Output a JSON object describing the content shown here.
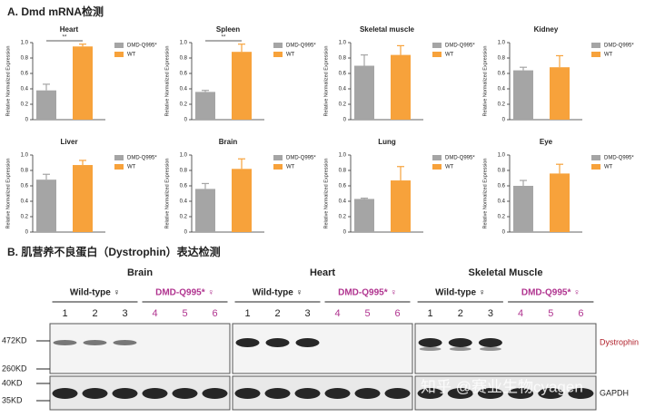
{
  "panel_a_title": "A. Dmd mRNA检测",
  "chart_data": [
    {
      "type": "bar",
      "title": "Heart",
      "y_label": "Relative Normalized Expression",
      "categories": [
        null
      ],
      "series": [
        {
          "name": "DMD-Q995*",
          "color": "#a5a5a5",
          "values": [
            0.38
          ],
          "errors": [
            0.08
          ]
        },
        {
          "name": "WT",
          "color": "#f7a23b",
          "values": [
            0.95
          ],
          "errors": [
            0.03
          ]
        }
      ],
      "ylim": [
        0,
        1
      ],
      "yticks": [
        0,
        0.2,
        0.4,
        0.6,
        0.8,
        {
          "value": 1,
          "label": "1.0"
        }
      ],
      "annotation": "**"
    },
    {
      "type": "bar",
      "title": "Spleen",
      "y_label": "Relative Normalized Expression",
      "categories": [
        null
      ],
      "series": [
        {
          "name": "DMD-Q995*",
          "color": "#a5a5a5",
          "values": [
            0.36
          ],
          "errors": [
            0.02
          ]
        },
        {
          "name": "WT",
          "color": "#f7a23b",
          "values": [
            0.88
          ],
          "errors": [
            0.1
          ]
        }
      ],
      "ylim": [
        0,
        1
      ],
      "yticks": [
        0,
        0.2,
        0.4,
        0.6,
        0.8,
        {
          "value": 1,
          "label": "1.0"
        }
      ],
      "annotation": "**"
    },
    {
      "type": "bar",
      "title": "Skeletal muscle",
      "y_label": "Relative Normalized Expression",
      "categories": [
        null
      ],
      "series": [
        {
          "name": "DMD-Q995*",
          "color": "#a5a5a5",
          "values": [
            0.7
          ],
          "errors": [
            0.14
          ]
        },
        {
          "name": "WT",
          "color": "#f7a23b",
          "values": [
            0.84
          ],
          "errors": [
            0.12
          ]
        }
      ],
      "ylim": [
        0,
        1
      ],
      "yticks": [
        0,
        0.2,
        0.4,
        0.6,
        0.8,
        {
          "value": 1,
          "label": "1.0"
        }
      ]
    },
    {
      "type": "bar",
      "title": "Kidney",
      "y_label": "Relative Normalized Expression",
      "categories": [
        null
      ],
      "series": [
        {
          "name": "DMD-Q995*",
          "color": "#a5a5a5",
          "values": [
            0.64
          ],
          "errors": [
            0.04
          ]
        },
        {
          "name": "WT",
          "color": "#f7a23b",
          "values": [
            0.68
          ],
          "errors": [
            0.15
          ]
        }
      ],
      "ylim": [
        0,
        1
      ],
      "yticks": [
        0,
        0.2,
        0.4,
        0.6,
        0.8,
        {
          "value": 1,
          "label": "1.0"
        }
      ]
    },
    {
      "type": "bar",
      "title": "Liver",
      "y_label": "Relative Normalized Expression",
      "categories": [
        null
      ],
      "series": [
        {
          "name": "DMD-Q995*",
          "color": "#a5a5a5",
          "values": [
            0.68
          ],
          "errors": [
            0.07
          ]
        },
        {
          "name": "WT",
          "color": "#f7a23b",
          "values": [
            0.87
          ],
          "errors": [
            0.06
          ]
        }
      ],
      "ylim": [
        0,
        1
      ],
      "yticks": [
        0,
        0.2,
        0.4,
        0.6,
        0.8,
        {
          "value": 1,
          "label": "1.0"
        }
      ]
    },
    {
      "type": "bar",
      "title": "Brain",
      "y_label": "Relative Normalized Expression",
      "categories": [
        null
      ],
      "series": [
        {
          "name": "DMD-Q995*",
          "color": "#a5a5a5",
          "values": [
            0.56
          ],
          "errors": [
            0.07
          ]
        },
        {
          "name": "WT",
          "color": "#f7a23b",
          "values": [
            0.82
          ],
          "errors": [
            0.13
          ]
        }
      ],
      "ylim": [
        0,
        1
      ],
      "yticks": [
        0,
        0.2,
        0.4,
        0.6,
        0.8,
        {
          "value": 1,
          "label": "1.0"
        }
      ]
    },
    {
      "type": "bar",
      "title": "Lung",
      "y_label": "Relative Normalized Expression",
      "categories": [
        null
      ],
      "series": [
        {
          "name": "DMD-Q995*",
          "color": "#a5a5a5",
          "values": [
            0.43
          ],
          "errors": [
            0.01
          ]
        },
        {
          "name": "WT",
          "color": "#f7a23b",
          "values": [
            0.67
          ],
          "errors": [
            0.18
          ]
        }
      ],
      "ylim": [
        0,
        1
      ],
      "yticks": [
        0,
        0.2,
        0.4,
        0.6,
        0.8,
        {
          "value": 1,
          "label": "1.0"
        }
      ]
    },
    {
      "type": "bar",
      "title": "Eye",
      "y_label": "Relative Normalized Expression",
      "categories": [
        null
      ],
      "series": [
        {
          "name": "DMD-Q995*",
          "color": "#a5a5a5",
          "values": [
            0.6
          ],
          "errors": [
            0.07
          ]
        },
        {
          "name": "WT",
          "color": "#f7a23b",
          "values": [
            0.76
          ],
          "errors": [
            0.12
          ]
        }
      ],
      "ylim": [
        0,
        1
      ],
      "yticks": [
        0,
        0.2,
        0.4,
        0.6,
        0.8,
        {
          "value": 1,
          "label": "1.0"
        }
      ]
    }
  ],
  "blot": {
    "title": "B. 肌营养不良蛋白（Dystrophin）表达检测",
    "panels": [
      {
        "tissue": "Brain",
        "groups": [
          {
            "label": "Wild-type ♀",
            "lanes": [
              "1",
              "2",
              "3"
            ]
          },
          {
            "label": "DMD-Q995* ♀",
            "lanes": [
              "4",
              "5",
              "6"
            ]
          }
        ]
      },
      {
        "tissue": "Heart",
        "groups": [
          {
            "label": "Wild-type ♀",
            "lanes": [
              "1",
              "2",
              "3"
            ]
          },
          {
            "label": "DMD-Q995* ♀",
            "lanes": [
              "4",
              "5",
              "6"
            ]
          }
        ]
      },
      {
        "tissue": "Skeletal Muscle",
        "groups": [
          {
            "label": "Wild-type ♀",
            "lanes": [
              "1",
              "2",
              "3"
            ]
          },
          {
            "label": "DMD-Q995* ♀",
            "lanes": [
              "4",
              "5",
              "6"
            ]
          }
        ]
      }
    ],
    "markers": [
      "472KD",
      "260KD",
      "40KD",
      "35KD"
    ],
    "bands": [
      "Dystrophin",
      "GAPDH"
    ],
    "watermark": "知乎 @赛业生物cyagen"
  }
}
